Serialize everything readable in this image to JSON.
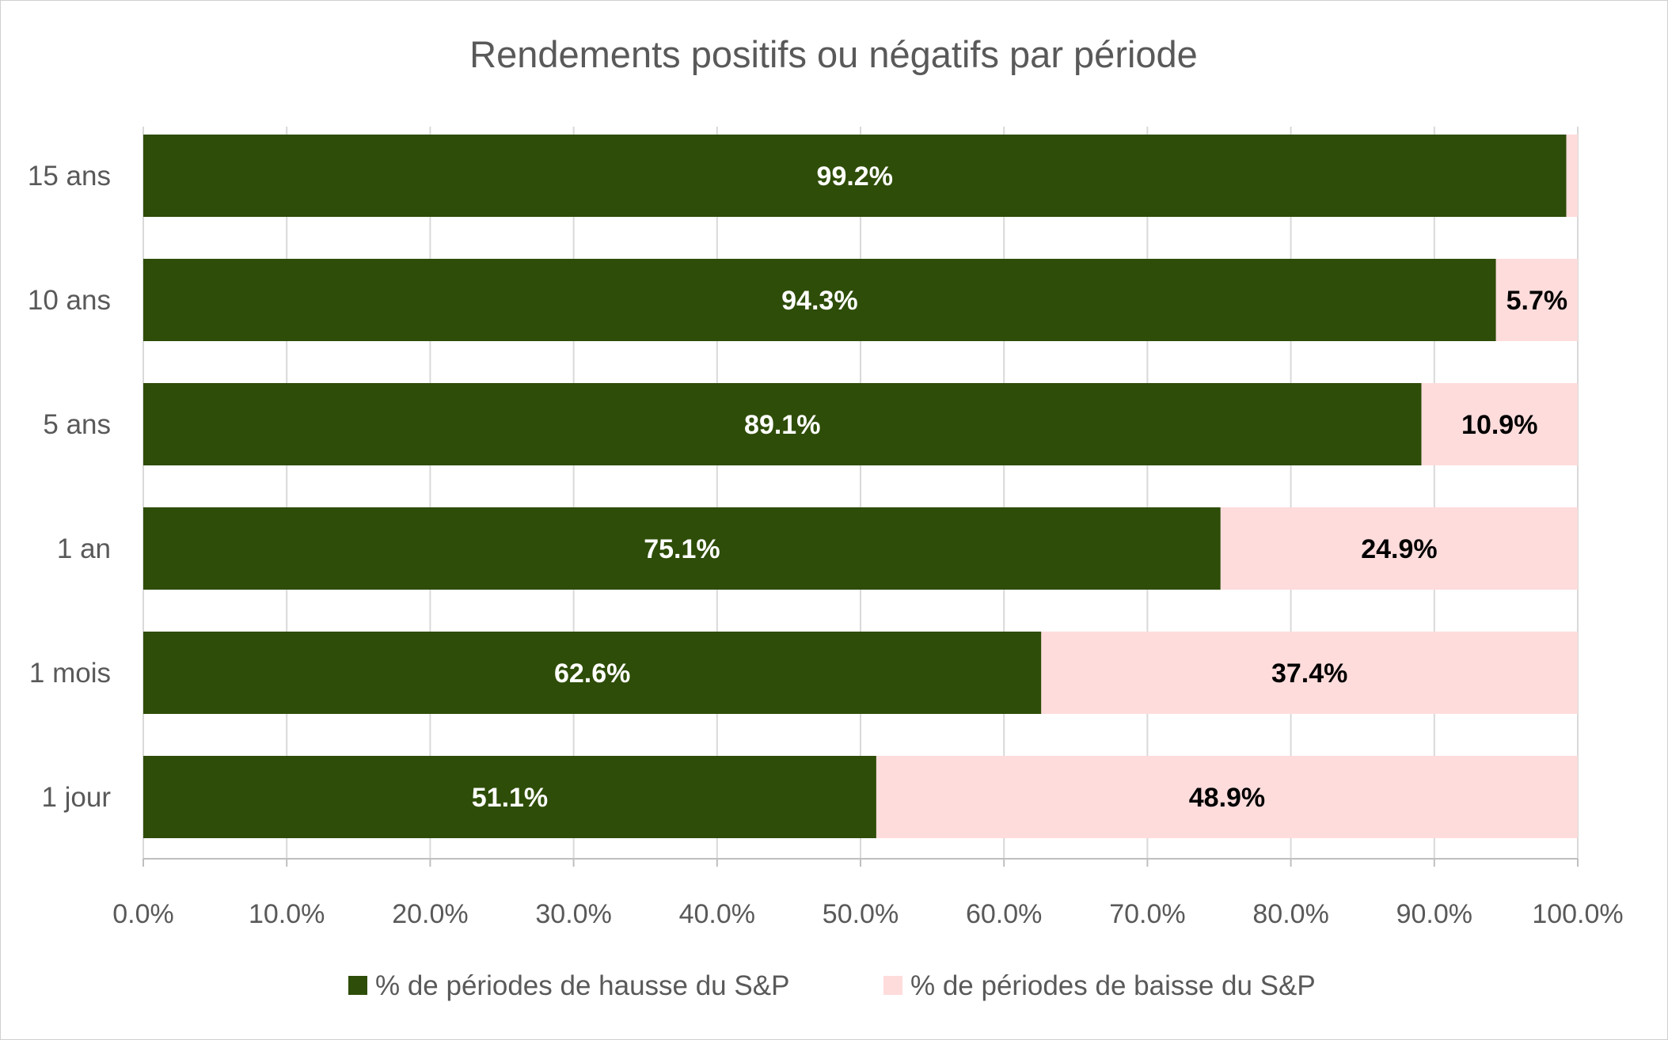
{
  "chart_data": {
    "type": "bar",
    "orientation": "horizontal",
    "stacked": true,
    "title": "Rendements positifs ou négatifs par période",
    "xlabel": "",
    "ylabel": "",
    "categories": [
      "15 ans",
      "10 ans",
      "5 ans",
      "1 an",
      "1 mois",
      "1 jour"
    ],
    "series": [
      {
        "name": "% de périodes de hausse du S&P",
        "color": "#2e4d08",
        "label_color": "#ffffff",
        "values": [
          99.2,
          94.3,
          89.1,
          75.1,
          62.6,
          51.1
        ],
        "labels": [
          "99.2%",
          "94.3%",
          "89.1%",
          "75.1%",
          "62.6%",
          "51.1%"
        ]
      },
      {
        "name": "% de périodes de baisse du S&P",
        "color": "#ffdcdc",
        "label_color": "#000000",
        "values": [
          0.8,
          5.7,
          10.9,
          24.9,
          37.4,
          48.9
        ],
        "labels": [
          "",
          "5.7%",
          "10.9%",
          "24.9%",
          "37.4%",
          "48.9%"
        ]
      }
    ],
    "xlim": [
      0,
      100
    ],
    "x_ticks": [
      0,
      10,
      20,
      30,
      40,
      50,
      60,
      70,
      80,
      90,
      100
    ],
    "x_tick_labels": [
      "0.0%",
      "10.0%",
      "20.0%",
      "30.0%",
      "40.0%",
      "50.0%",
      "60.0%",
      "70.0%",
      "80.0%",
      "90.0%",
      "100.0%"
    ],
    "grid": "vertical",
    "grid_color": "#d9d9d9",
    "legend_position": "bottom"
  }
}
